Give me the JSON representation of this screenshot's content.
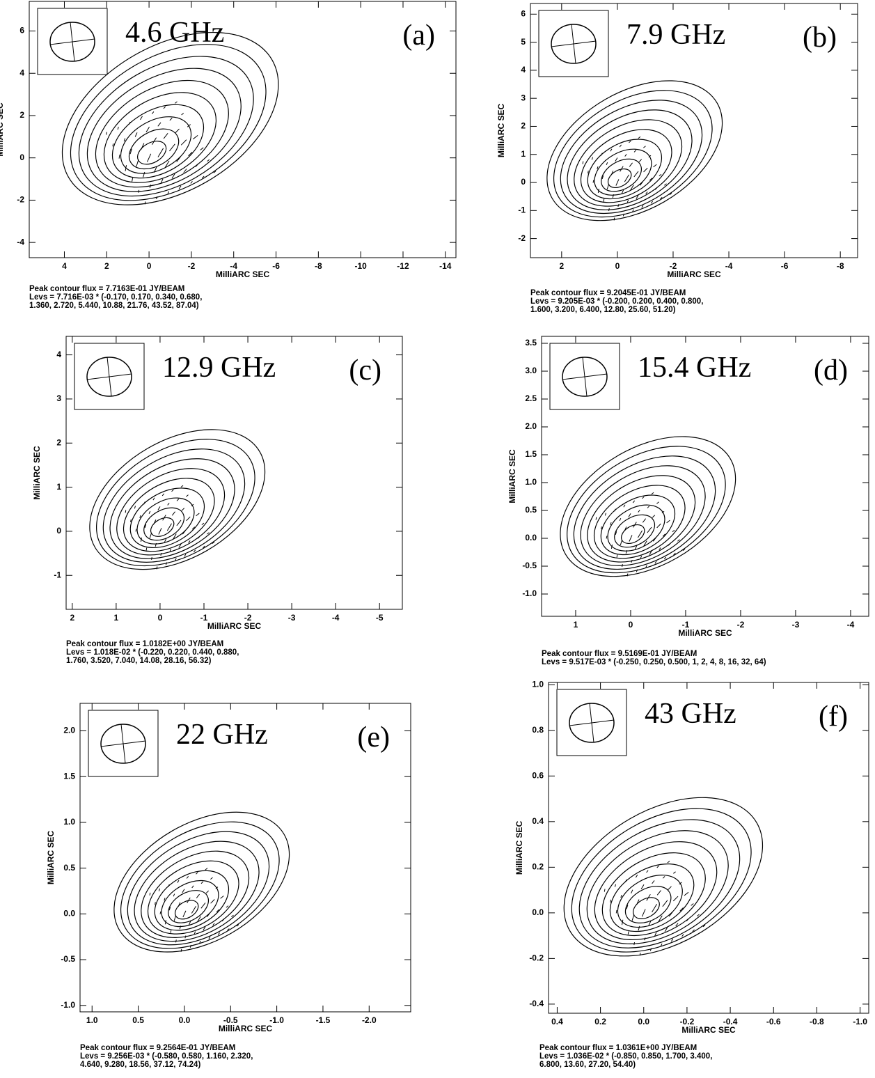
{
  "chart_data": [
    {
      "type": "contour",
      "title": "4.6 GHz",
      "panel": "(a)",
      "x_label": "MilliARC SEC",
      "y_label": "MilliARC SEC",
      "xlim": [
        5.66,
        -14.5
      ],
      "ylim": [
        -4.72,
        7.4
      ],
      "xticks": [
        4,
        2,
        0,
        -2,
        -4,
        -6,
        -8,
        -10,
        -12,
        -14
      ],
      "yticks": [
        -4,
        -2,
        0,
        2,
        4,
        6
      ],
      "notes": [
        "Peak contour flux =  7.7163E-01 JY/BEAM",
        "Levs = 7.716E-03 * (-0.170, 0.170, 0.340, 0.680,",
        "1.360, 2.720, 5.440, 10.88, 21.76, 43.52, 87.04)"
      ]
    },
    {
      "type": "contour",
      "title": "7.9 GHz",
      "panel": "(b)",
      "x_label": "MilliARC SEC",
      "y_label": "MilliARC SEC",
      "xlim": [
        3.12,
        -8.62
      ],
      "ylim": [
        -2.68,
        6.38
      ],
      "xticks": [
        2,
        0,
        -2,
        -4,
        -6,
        -8
      ],
      "yticks": [
        -2,
        -1,
        0,
        1,
        2,
        3,
        4,
        5,
        6
      ],
      "notes": [
        "Peak contour flux =  9.2045E-01 JY/BEAM",
        "Levs = 9.205E-03 * (-0.200, 0.200, 0.400, 0.800,",
        "1.600, 3.200, 6.400, 12.80, 25.60, 51.20)"
      ]
    },
    {
      "type": "contour",
      "title": "12.9 GHz",
      "panel": "(c)",
      "x_label": "MilliARC SEC",
      "y_label": "MilliARC SEC",
      "xlim": [
        2.14,
        -5.52
      ],
      "ylim": [
        -1.77,
        4.42
      ],
      "xticks": [
        2,
        1,
        0,
        -1,
        -2,
        -3,
        -4,
        -5
      ],
      "yticks": [
        -1,
        0,
        1,
        2,
        3,
        4
      ],
      "notes": [
        "Peak contour flux =  1.0182E+00 JY/BEAM",
        "Levs = 1.018E-02 * (-0.220, 0.220, 0.440, 0.880,",
        "1.760, 3.520, 7.040, 14.08, 28.16, 56.32)"
      ]
    },
    {
      "type": "contour",
      "title": "15.4 GHz",
      "panel": "(d)",
      "x_label": "MilliARC SEC",
      "y_label": "MilliARC SEC",
      "xlim": [
        1.62,
        -4.33
      ],
      "ylim": [
        -1.4,
        3.625
      ],
      "xticks": [
        1,
        0,
        -1,
        -2,
        -3,
        -4
      ],
      "yticks": [
        {
          "value": -1,
          "label": "-1.0"
        },
        -0.5,
        {
          "value": 0,
          "label": "0.0"
        },
        0.5,
        {
          "value": 1,
          "label": "1.0"
        },
        1.5,
        {
          "value": 2,
          "label": "2.0"
        },
        2.5,
        {
          "value": 3,
          "label": "3.0"
        },
        3.5
      ],
      "notes": [
        "Peak contour flux =  9.5169E-01 JY/BEAM",
        "Levs = 9.517E-03 * (-0.250, 0.250, 0.500, 1, 2, 4, 8, 16, 32, 64)"
      ]
    },
    {
      "type": "contour",
      "title": "22 GHz",
      "panel": "(e)",
      "x_label": "MilliARC SEC",
      "y_label": "MilliARC SEC",
      "xlim": [
        1.13,
        -2.45
      ],
      "ylim": [
        -1.07,
        2.3
      ],
      "xticks": [
        {
          "value": 1,
          "label": "1.0"
        },
        0.5,
        {
          "value": 0,
          "label": "0.0"
        },
        -0.5,
        {
          "value": -1,
          "label": "-1.0"
        },
        -1.5,
        {
          "value": -2,
          "label": "-2.0"
        }
      ],
      "yticks": [
        {
          "value": -1,
          "label": "-1.0"
        },
        -0.5,
        {
          "value": 0,
          "label": "0.0"
        },
        0.5,
        {
          "value": 1,
          "label": "1.0"
        },
        1.5,
        {
          "value": 2,
          "label": "2.0"
        }
      ],
      "notes": [
        "Peak contour flux =  9.2564E-01 JY/BEAM",
        "Levs = 9.256E-03 * (-0.580, 0.580, 1.160, 2.320,",
        "4.640, 9.280, 18.56, 37.12, 74.24)"
      ]
    },
    {
      "type": "contour",
      "title": "43 GHz",
      "panel": "(f)",
      "x_label": "MilliARC SEC",
      "y_label": "MilliARC SEC",
      "xlim": [
        0.44,
        -1.04
      ],
      "ylim": [
        -0.44,
        1.01
      ],
      "xticks": [
        0.4,
        0.2,
        {
          "value": 0,
          "label": "0.0"
        },
        -0.2,
        -0.4,
        -0.6,
        -0.8,
        {
          "value": -1,
          "label": "-1.0"
        }
      ],
      "yticks": [
        -0.4,
        -0.2,
        {
          "value": 0,
          "label": "0.0"
        },
        0.2,
        0.4,
        0.6,
        0.8,
        {
          "value": 1,
          "label": "1.0"
        }
      ],
      "notes": [
        "Peak contour flux =  1.0361E+00 JY/BEAM",
        "Levs = 1.036E-02 * (-0.850, 0.850, 1.700, 3.400,",
        "6.800, 13.60, 27.20, 54.40)"
      ]
    }
  ]
}
